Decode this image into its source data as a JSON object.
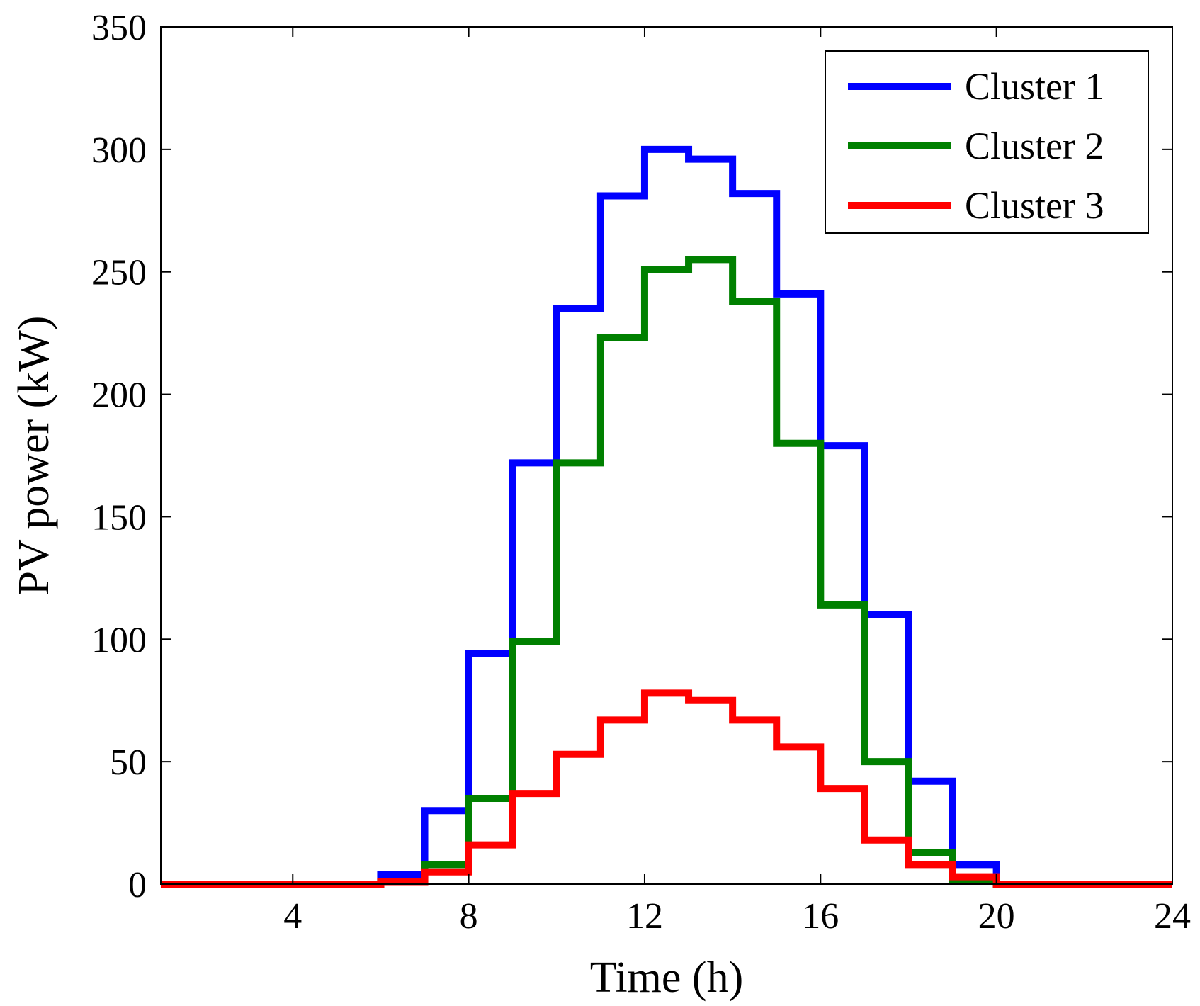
{
  "chart_data": {
    "type": "line",
    "step": "post",
    "xlabel": "Time (h)",
    "ylabel": "PV power (kW)",
    "xlim": [
      1,
      24
    ],
    "ylim": [
      0,
      350
    ],
    "xticks": [
      4,
      8,
      12,
      16,
      20,
      24
    ],
    "yticks": [
      0,
      50,
      100,
      150,
      200,
      250,
      300,
      350
    ],
    "grid": false,
    "legend_position": "top-right",
    "x": [
      1,
      2,
      3,
      4,
      5,
      6,
      7,
      8,
      9,
      10,
      11,
      12,
      13,
      14,
      15,
      16,
      17,
      18,
      19,
      20,
      21,
      22,
      23,
      24
    ],
    "series": [
      {
        "name": "Cluster 1",
        "color": "#0000ff",
        "values": [
          0,
          0,
          0,
          0,
          0,
          4,
          30,
          94,
          172,
          235,
          281,
          300,
          296,
          282,
          241,
          179,
          110,
          42,
          8,
          0,
          0,
          0,
          0,
          0
        ]
      },
      {
        "name": "Cluster 2",
        "color": "#008000",
        "values": [
          0,
          0,
          0,
          0,
          0,
          1,
          8,
          35,
          99,
          172,
          223,
          251,
          255,
          238,
          180,
          114,
          50,
          13,
          2,
          0,
          0,
          0,
          0,
          0
        ]
      },
      {
        "name": "Cluster 3",
        "color": "#ff0000",
        "values": [
          0,
          0,
          0,
          0,
          0,
          1,
          5,
          16,
          37,
          53,
          67,
          78,
          75,
          67,
          56,
          39,
          18,
          8,
          3,
          0,
          0,
          0,
          0,
          0
        ]
      }
    ]
  }
}
